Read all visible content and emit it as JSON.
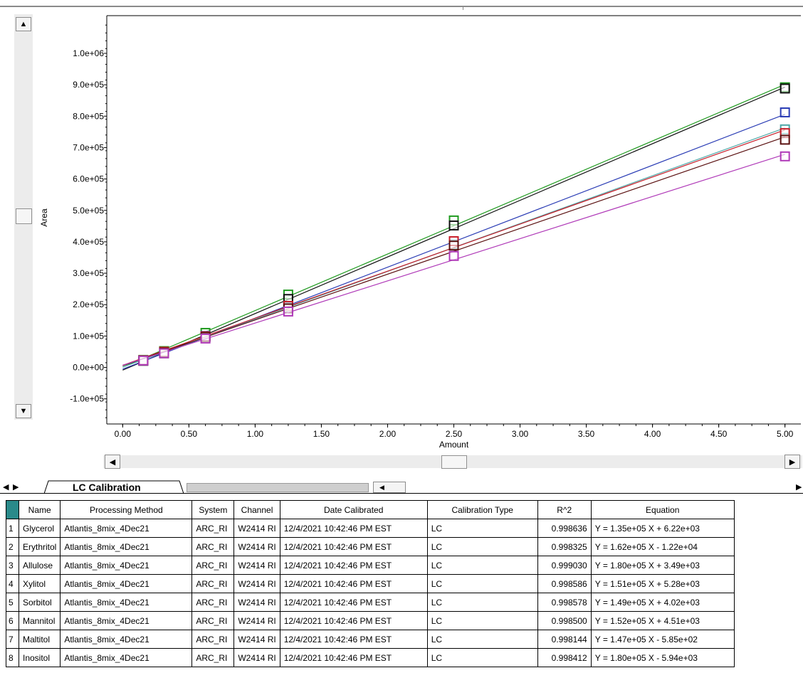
{
  "chart_data": {
    "type": "scatter",
    "xlabel": "Amount",
    "ylabel": "Area",
    "xlim": [
      -0.12,
      5.12
    ],
    "ylim": [
      -180000.0,
      1120000.0
    ],
    "xticks": [
      "0.00",
      "0.50",
      "1.00",
      "1.50",
      "2.00",
      "2.50",
      "3.00",
      "3.50",
      "4.00",
      "4.50",
      "5.00"
    ],
    "yticks": [
      "1.0e+06",
      "9.0e+05",
      "8.0e+05",
      "7.0e+05",
      "6.0e+05",
      "5.0e+05",
      "4.0e+05",
      "3.0e+05",
      "2.0e+05",
      "1.0e+05",
      "0.0e+00",
      "-1.0e+05"
    ],
    "x": [
      0.156,
      0.3125,
      0.625,
      1.25,
      2.5,
      5.0
    ],
    "series": [
      {
        "color": "#1f9a1f",
        "values": [
          24000,
          52000,
          110000,
          232000,
          468000,
          892000
        ]
      },
      {
        "color": "#101010",
        "values": [
          21000,
          45000,
          98000,
          218000,
          452000,
          888000
        ]
      },
      {
        "color": "#2b3db5",
        "values": [
          22000,
          48000,
          100000,
          195000,
          388000,
          812000
        ]
      },
      {
        "color": "#4fa8a8",
        "values": [
          22000,
          46000,
          98000,
          190000,
          392000,
          758000
        ]
      },
      {
        "color": "#c81e2a",
        "values": [
          23000,
          50000,
          99000,
          196000,
          402000,
          746000
        ]
      },
      {
        "color": "#5a1010",
        "values": [
          22000,
          47000,
          97000,
          188000,
          388000,
          725000
        ]
      },
      {
        "color": "#b03ab8",
        "values": [
          22000,
          45000,
          92000,
          178000,
          355000,
          672000
        ]
      }
    ]
  },
  "tabs": {
    "active": "LC Calibration"
  },
  "table": {
    "columns": [
      "Name",
      "Processing Method",
      "System",
      "Channel",
      "Date Calibrated",
      "Calibration Type",
      "R^2",
      "Equation"
    ],
    "rows": [
      [
        "1",
        "Glycerol",
        "Atlantis_8mix_4Dec21",
        "ARC_RI",
        "W2414 RI",
        "12/4/2021 10:42:46 PM EST",
        "LC",
        "0.998636",
        "Y = 1.35e+05 X + 6.22e+03"
      ],
      [
        "2",
        "Erythritol",
        "Atlantis_8mix_4Dec21",
        "ARC_RI",
        "W2414 RI",
        "12/4/2021 10:42:46 PM EST",
        "LC",
        "0.998325",
        "Y = 1.62e+05 X - 1.22e+04"
      ],
      [
        "3",
        "Allulose",
        "Atlantis_8mix_4Dec21",
        "ARC_RI",
        "W2414 RI",
        "12/4/2021 10:42:46 PM EST",
        "LC",
        "0.999030",
        "Y = 1.80e+05 X + 3.49e+03"
      ],
      [
        "4",
        "Xylitol",
        "Atlantis_8mix_4Dec21",
        "ARC_RI",
        "W2414 RI",
        "12/4/2021 10:42:46 PM EST",
        "LC",
        "0.998586",
        "Y = 1.51e+05 X + 5.28e+03"
      ],
      [
        "5",
        "Sorbitol",
        "Atlantis_8mix_4Dec21",
        "ARC_RI",
        "W2414 RI",
        "12/4/2021 10:42:46 PM EST",
        "LC",
        "0.998578",
        "Y = 1.49e+05 X + 4.02e+03"
      ],
      [
        "6",
        "Mannitol",
        "Atlantis_8mix_4Dec21",
        "ARC_RI",
        "W2414 RI",
        "12/4/2021 10:42:46 PM EST",
        "LC",
        "0.998500",
        "Y = 1.52e+05 X + 4.51e+03"
      ],
      [
        "7",
        "Maltitol",
        "Atlantis_8mix_4Dec21",
        "ARC_RI",
        "W2414 RI",
        "12/4/2021 10:42:46 PM EST",
        "LC",
        "0.998144",
        "Y = 1.47e+05 X - 5.85e+02"
      ],
      [
        "8",
        "Inositol",
        "Atlantis_8mix_4Dec21",
        "ARC_RI",
        "W2414 RI",
        "12/4/2021 10:42:46 PM EST",
        "LC",
        "0.998412",
        "Y = 1.80e+05 X - 5.94e+03"
      ]
    ]
  }
}
